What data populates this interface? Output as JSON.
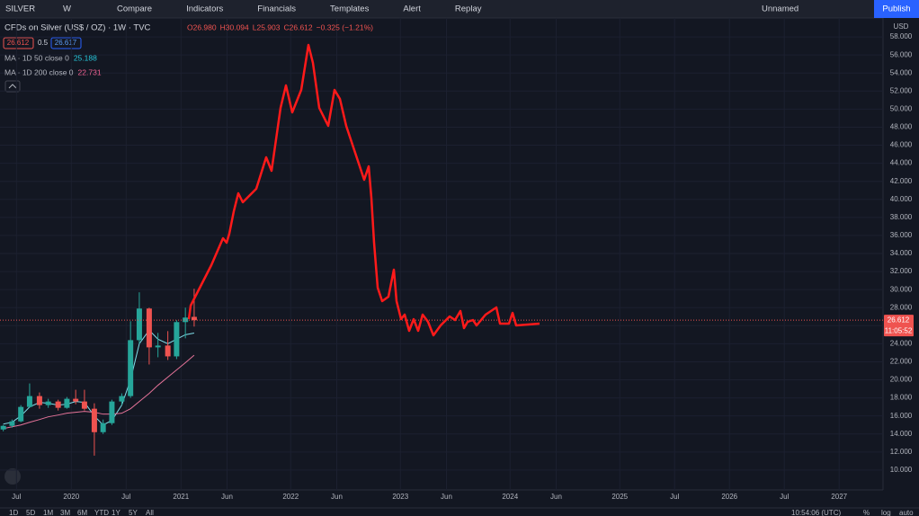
{
  "toolbar": {
    "symbol": "SILVER",
    "interval": "W",
    "items": [
      "Compare",
      "Indicators",
      "Financials",
      "Templates",
      "Alert",
      "Replay"
    ],
    "layout_name": "Unnamed",
    "publish": "Publish"
  },
  "legend": {
    "title": "CFDs on Silver (US$ / OZ) · 1W · TVC",
    "ohlc": [
      "O26.980",
      "H30.094",
      "L25.903",
      "C26.612",
      "−0.325 (−1.21%)"
    ],
    "bid": "26.612",
    "spread": "0.5",
    "ask": "26.617",
    "studies": [
      {
        "name": "MA · 1D 50 close 0",
        "value": "25.188",
        "color": "#26c6da"
      },
      {
        "name": "MA · 1D 200 close 0",
        "value": "22.731",
        "color": "#f06292"
      }
    ]
  },
  "chart_data": {
    "type": "candlestick",
    "currency": "USD",
    "x": [
      2019.38,
      2019.46,
      2019.54,
      2019.62,
      2019.71,
      2019.79,
      2019.88,
      2019.96,
      2020.04,
      2020.12,
      2020.21,
      2020.29,
      2020.37,
      2020.46,
      2020.54,
      2020.62,
      2020.71,
      2020.79,
      2020.88,
      2020.96,
      2021.04,
      2021.12
    ],
    "open": [
      14.5,
      14.9,
      15.4,
      17.0,
      18.2,
      17.2,
      17.6,
      16.9,
      17.9,
      17.6,
      16.8,
      14.2,
      15.2,
      17.6,
      18.2,
      24.4,
      27.9,
      23.6,
      23.8,
      22.6,
      26.4,
      26.98
    ],
    "high": [
      15.0,
      15.6,
      17.2,
      19.6,
      18.6,
      17.9,
      17.8,
      18.1,
      18.9,
      18.9,
      17.4,
      15.6,
      17.8,
      18.5,
      26.5,
      29.7,
      28.0,
      25.2,
      25.4,
      26.6,
      28.0,
      30.094
    ],
    "low": [
      14.3,
      14.7,
      15.3,
      16.9,
      16.8,
      16.9,
      16.6,
      16.8,
      17.3,
      16.6,
      11.6,
      14.0,
      15.0,
      17.2,
      18.0,
      24.0,
      21.7,
      22.5,
      22.2,
      22.3,
      24.6,
      25.903
    ],
    "close": [
      14.9,
      15.4,
      17.0,
      18.2,
      17.2,
      17.6,
      16.9,
      17.9,
      17.6,
      16.8,
      14.2,
      15.2,
      17.6,
      18.2,
      24.4,
      27.9,
      23.6,
      23.8,
      22.6,
      26.4,
      26.9,
      26.612
    ],
    "up_color": "#26a69a",
    "down_color": "#ef5350",
    "ma_lines": [
      {
        "color": "#80deea",
        "values": [
          15.1,
          15.3,
          16.0,
          17.0,
          17.5,
          17.4,
          17.2,
          17.3,
          17.6,
          17.5,
          16.0,
          15.0,
          15.5,
          17.2,
          20.0,
          24.0,
          25.5,
          24.5,
          24.0,
          24.5,
          25.0,
          25.188
        ]
      },
      {
        "color": "#e57399",
        "values": [
          14.6,
          14.8,
          15.0,
          15.3,
          15.6,
          15.9,
          16.1,
          16.3,
          16.4,
          16.5,
          16.4,
          16.2,
          16.2,
          16.3,
          16.8,
          17.6,
          18.5,
          19.4,
          20.3,
          21.1,
          21.9,
          22.731
        ]
      }
    ],
    "last_price": 26.612,
    "countdown": "11:05:52",
    "xlim": [
      2019.35,
      2027.4
    ],
    "ylim": [
      7.8,
      60.1
    ],
    "xticks": [
      {
        "value": 2019.5,
        "label": "Jul"
      },
      {
        "value": 2020,
        "label": "2020"
      },
      {
        "value": 2020.5,
        "label": "Jul"
      },
      {
        "value": 2021,
        "label": "2021"
      },
      {
        "value": 2021.42,
        "label": "Jun"
      },
      {
        "value": 2022,
        "label": "2022"
      },
      {
        "value": 2022.42,
        "label": "Jun"
      },
      {
        "value": 2023,
        "label": "2023"
      },
      {
        "value": 2023.42,
        "label": "Jun"
      },
      {
        "value": 2024,
        "label": "2024"
      },
      {
        "value": 2024.42,
        "label": "Jun"
      },
      {
        "value": 2025,
        "label": "2025"
      },
      {
        "value": 2025.5,
        "label": "Jul"
      },
      {
        "value": 2026,
        "label": "2026"
      },
      {
        "value": 2026.5,
        "label": "Jul"
      },
      {
        "value": 2027,
        "label": "2027"
      }
    ],
    "yticks": [
      {
        "value": 10,
        "label": "10.000"
      },
      {
        "value": 12,
        "label": "12.000"
      },
      {
        "value": 14,
        "label": "14.000"
      },
      {
        "value": 16,
        "label": "16.000"
      },
      {
        "value": 18,
        "label": "18.000"
      },
      {
        "value": 20,
        "label": "20.000"
      },
      {
        "value": 22,
        "label": "22.000"
      },
      {
        "value": 24,
        "label": "24.000"
      },
      {
        "value": 26,
        "label": "26.000"
      },
      {
        "value": 28,
        "label": "28.000"
      },
      {
        "value": 30,
        "label": "30.000"
      },
      {
        "value": 32,
        "label": "32.000"
      },
      {
        "value": 34,
        "label": "34.000"
      },
      {
        "value": 36,
        "label": "36.000"
      },
      {
        "value": 38,
        "label": "38.000"
      },
      {
        "value": 40,
        "label": "40.000"
      },
      {
        "value": 42,
        "label": "42.000"
      },
      {
        "value": 44,
        "label": "44.000"
      },
      {
        "value": 46,
        "label": "46.000"
      },
      {
        "value": 48,
        "label": "48.000"
      },
      {
        "value": 50,
        "label": "50.000"
      },
      {
        "value": 52,
        "label": "52.000"
      },
      {
        "value": 54,
        "label": "54.000"
      },
      {
        "value": 56,
        "label": "56.000"
      },
      {
        "value": 58,
        "label": "58.000"
      }
    ]
  },
  "bottom_bar": {
    "ranges": [
      "1D",
      "5D",
      "1M",
      "3M",
      "6M",
      "YTD",
      "1Y",
      "5Y",
      "All"
    ],
    "clock": "10:54:06 (UTC)",
    "options": [
      "%",
      "log",
      "auto"
    ]
  }
}
